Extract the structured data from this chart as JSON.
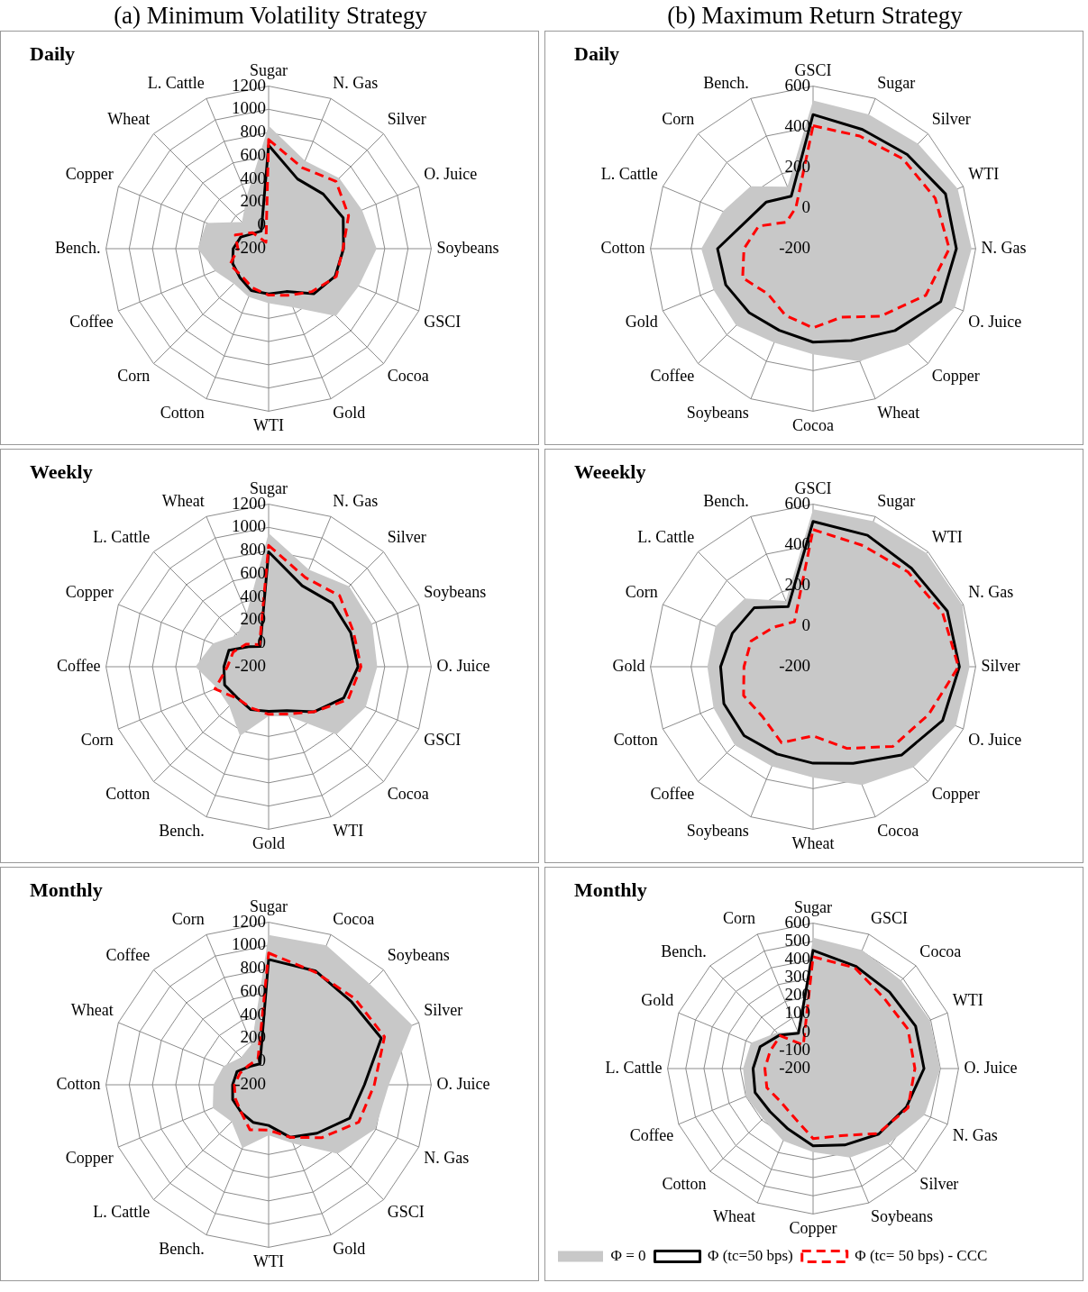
{
  "chart_data": [
    {
      "type": "radar",
      "title": "Daily",
      "subtitle": "(a)  Minimum Volatility Strategy",
      "categories": [
        "Sugar",
        "N. Gas",
        "Silver",
        "O. Juice",
        "Soybeans",
        "GSCI",
        "Cocoa",
        "Gold",
        "WTI",
        "Cotton",
        "Corn",
        "Coffee",
        "Bench.",
        "Copper",
        "Wheat",
        "L. Cattle"
      ],
      "ylim": [
        -200,
        1200
      ],
      "yticks": [
        -200,
        0,
        200,
        400,
        600,
        800,
        1000,
        1200
      ],
      "grid": true,
      "marker": "none",
      "legend": false,
      "series": [
        {
          "type": "area",
          "color": "#c8c8c8",
          "values": [
            860,
            620,
            660,
            670,
            730,
            640,
            620,
            345,
            270,
            250,
            225,
            300,
            410,
            380,
            125,
            290
          ]
        },
        {
          "color": "#000000",
          "values": [
            690,
            450,
            465,
            495,
            445,
            420,
            350,
            200,
            190,
            190,
            150,
            135,
            105,
            60,
            -15,
            -35
          ]
        },
        {
          "color": "#ff0000",
          "line_style": "dashed",
          "values": [
            740,
            555,
            620,
            545,
            440,
            430,
            325,
            235,
            200,
            165,
            130,
            160,
            65,
            110,
            -5,
            -140
          ]
        }
      ]
    },
    {
      "type": "radar",
      "title": "Daily",
      "subtitle": "(b)  Maximum Return Strategy",
      "categories": [
        "GSCI",
        "Sugar",
        "Silver",
        "WTI",
        "N. Gas",
        "O. Juice",
        "Copper",
        "Wheat",
        "Cocoa",
        "Soybeans",
        "Coffee",
        "Gold",
        "Cotton",
        "L. Cattle",
        "Corn",
        "Bench."
      ],
      "ylim": [
        -200,
        600
      ],
      "yticks": [
        -200,
        0,
        200,
        400,
        600
      ],
      "grid": true,
      "marker": "none",
      "legend": false,
      "series": [
        {
          "type": "area",
          "color": "#c8c8c8",
          "values": [
            530,
            515,
            530,
            570,
            580,
            555,
            465,
            400,
            320,
            300,
            335,
            330,
            350,
            280,
            235,
            130
          ]
        },
        {
          "color": "#000000",
          "values": [
            460,
            435,
            455,
            505,
            505,
            480,
            370,
            290,
            260,
            235,
            245,
            265,
            270,
            155,
            125,
            80
          ]
        },
        {
          "color": "#ff0000",
          "line_style": "dashed",
          "values": [
            405,
            400,
            425,
            450,
            470,
            400,
            270,
            165,
            190,
            155,
            115,
            175,
            140,
            90,
            -15,
            20
          ]
        }
      ]
    },
    {
      "type": "radar",
      "title": "Weekly",
      "categories": [
        "Sugar",
        "N. Gas",
        "Silver",
        "Soybeans",
        "O. Juice",
        "GSCI",
        "Cocoa",
        "WTI",
        "Gold",
        "Bench.",
        "Cotton",
        "Corn",
        "Coffee",
        "Copper",
        "L. Cattle",
        "Wheat"
      ],
      "ylim": [
        -200,
        1200
      ],
      "yticks": [
        -200,
        0,
        200,
        400,
        600,
        800,
        1000,
        1200
      ],
      "grid": true,
      "marker": "none",
      "legend": false,
      "series": [
        {
          "type": "area",
          "color": "#c8c8c8",
          "values": [
            950,
            705,
            780,
            765,
            735,
            705,
            625,
            265,
            225,
            445,
            280,
            280,
            430,
            320,
            185,
            295
          ]
        },
        {
          "color": "#000000",
          "values": [
            790,
            555,
            575,
            565,
            570,
            500,
            350,
            210,
            185,
            200,
            180,
            210,
            185,
            170,
            45,
            -10
          ]
        },
        {
          "color": "#ff0000",
          "line_style": "dashed",
          "values": [
            845,
            630,
            665,
            590,
            595,
            540,
            350,
            240,
            210,
            185,
            185,
            300,
            155,
            130,
            75,
            5
          ]
        }
      ]
    },
    {
      "type": "radar",
      "title": "Weeekly",
      "categories": [
        "GSCI",
        "Sugar",
        "WTI",
        "N. Gas",
        "Silver",
        "O. Juice",
        "Copper",
        "Cocoa",
        "Wheat",
        "Soybeans",
        "Coffee",
        "Cotton",
        "Gold",
        "Corn",
        "L. Cattle",
        "Bench."
      ],
      "ylim": [
        -200,
        600
      ],
      "yticks": [
        -200,
        0,
        200,
        400,
        600
      ],
      "grid": true,
      "marker": "none",
      "legend": false,
      "series": [
        {
          "type": "area",
          "color": "#c8c8c8",
          "values": [
            575,
            575,
            590,
            595,
            570,
            560,
            500,
            430,
            345,
            330,
            345,
            330,
            320,
            320,
            275,
            150
          ]
        },
        {
          "color": "#000000",
          "values": [
            515,
            500,
            485,
            515,
            520,
            490,
            415,
            315,
            275,
            265,
            280,
            275,
            255,
            230,
            210,
            120
          ]
        },
        {
          "color": "#ff0000",
          "line_style": "dashed",
          "values": [
            475,
            445,
            460,
            490,
            515,
            415,
            355,
            235,
            140,
            205,
            150,
            170,
            140,
            130,
            75,
            40
          ]
        }
      ]
    },
    {
      "type": "radar",
      "title": "Monthly",
      "categories": [
        "Sugar",
        "Cocoa",
        "Soybeans",
        "Silver",
        "O. Juice",
        "N. Gas",
        "GSCI",
        "Gold",
        "WTI",
        "Bench.",
        "L. Cattle",
        "Copper",
        "Cotton",
        "Wheat",
        "Coffee",
        "Corn"
      ],
      "ylim": [
        -200,
        1200
      ],
      "yticks": [
        -200,
        0,
        200,
        400,
        600,
        800,
        1000,
        1200
      ],
      "grid": true,
      "marker": "none",
      "legend": false,
      "series": [
        {
          "type": "area",
          "color": "#c8c8c8",
          "values": [
            1090,
            1100,
            1030,
            1140,
            835,
            795,
            640,
            345,
            235,
            390,
            250,
            320,
            275,
            220,
            135,
            180
          ]
        },
        {
          "color": "#000000",
          "values": [
            880,
            860,
            810,
            850,
            625,
            555,
            390,
            290,
            150,
            150,
            135,
            135,
            110,
            95,
            25,
            -5
          ]
        },
        {
          "color": "#ff0000",
          "line_style": "dashed",
          "values": [
            935,
            850,
            850,
            880,
            710,
            640,
            445,
            290,
            190,
            220,
            135,
            110,
            95,
            65,
            40,
            40
          ]
        }
      ]
    },
    {
      "type": "radar",
      "title": "Monthly",
      "categories": [
        "Sugar",
        "GSCI",
        "Cocoa",
        "WTI",
        "O. Juice",
        "N. Gas",
        "Silver",
        "Soybeans",
        "Copper",
        "Wheat",
        "Cotton",
        "Coffee",
        "L. Cattle",
        "Gold",
        "Bench.",
        "Corn"
      ],
      "ylim": [
        -200,
        600
      ],
      "yticks": [
        -200,
        -100,
        0,
        100,
        200,
        300,
        400,
        500,
        600
      ],
      "grid": true,
      "marker": "none",
      "legend": "bottom left",
      "series": [
        {
          "type": "area",
          "name": "Φ = 0",
          "color": "#c8c8c8",
          "values": [
            520,
            505,
            485,
            495,
            500,
            465,
            385,
            330,
            260,
            230,
            190,
            200,
            185,
            170,
            80,
            20
          ]
        },
        {
          "name": "Φ (tc=50 bps)",
          "color": "#000000",
          "values": [
            450,
            410,
            395,
            410,
            410,
            355,
            310,
            255,
            225,
            160,
            135,
            145,
            130,
            115,
            60,
            10
          ]
        },
        {
          "name": "Φ (tc= 50 bps) - CCC",
          "color": "#ff0000",
          "line_style": "dashed",
          "values": [
            415,
            400,
            350,
            365,
            360,
            365,
            305,
            200,
            185,
            85,
            55,
            75,
            65,
            55,
            55,
            -60
          ]
        }
      ]
    }
  ]
}
